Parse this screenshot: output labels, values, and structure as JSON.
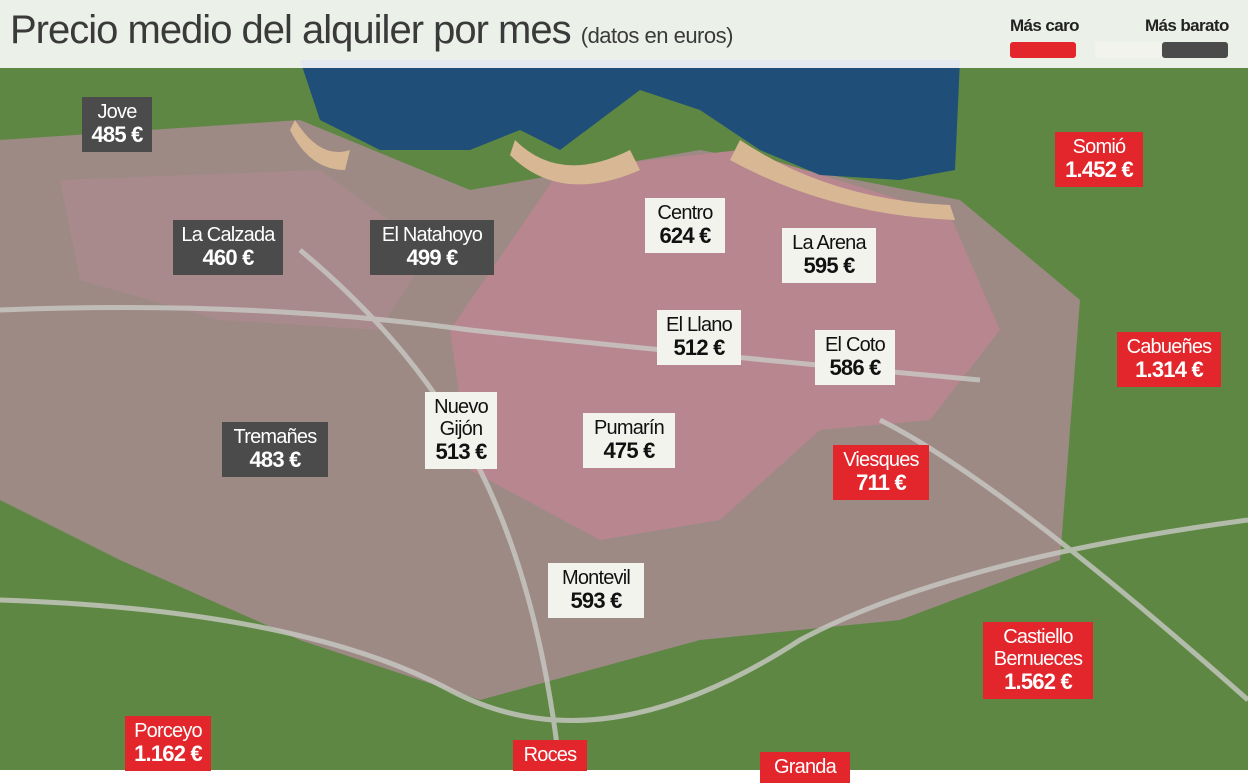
{
  "header": {
    "title": "Precio medio del alquiler por mes",
    "subtitle": "(datos en euros)"
  },
  "legend": [
    {
      "label": "Más caro",
      "color": "#e3262b"
    },
    {
      "color": "#f3f3ee"
    },
    {
      "label": "Más barato",
      "color": "#4b4b4b"
    }
  ],
  "areas": [
    {
      "name": "Jove",
      "price": "485 €",
      "color": "#4b4b4b"
    },
    {
      "name": "La Calzada",
      "price": "460 €",
      "color": "#4b4b4b"
    },
    {
      "name": "El Natahoyo",
      "price": "499 €",
      "color": "#4b4b4b"
    },
    {
      "name": "Centro",
      "price": "624 €",
      "color": "#f3f3ee"
    },
    {
      "name": "La Arena",
      "price": "595 €",
      "color": "#f3f3ee"
    },
    {
      "name": "El Llano",
      "price": "512 €",
      "color": "#f3f3ee"
    },
    {
      "name": "El Coto",
      "price": "586 €",
      "color": "#f3f3ee"
    },
    {
      "name": "Nuevo Gijón",
      "price": "513 €",
      "color": "#f3f3ee"
    },
    {
      "name": "Pumarín",
      "price": "475 €",
      "color": "#f3f3ee"
    },
    {
      "name": "Tremañes",
      "price": "483 €",
      "color": "#4b4b4b"
    },
    {
      "name": "Viesques",
      "price": "711 €",
      "color": "#e3262b"
    },
    {
      "name": "Somió",
      "price": "1.452 €",
      "color": "#e3262b"
    },
    {
      "name": "Cabueñes",
      "price": "1.314 €",
      "color": "#e3262b"
    },
    {
      "name": "Montevil",
      "price": "593 €",
      "color": "#f3f3ee"
    },
    {
      "name": "Castiello Bernueces",
      "price": "1.562 €",
      "color": "#e3262b"
    },
    {
      "name": "Porceyo",
      "price": "1.162 €",
      "color": "#e3262b"
    },
    {
      "name": "Roces",
      "color": "#e3262b"
    },
    {
      "name": "Granda",
      "color": "#e3262b"
    }
  ]
}
